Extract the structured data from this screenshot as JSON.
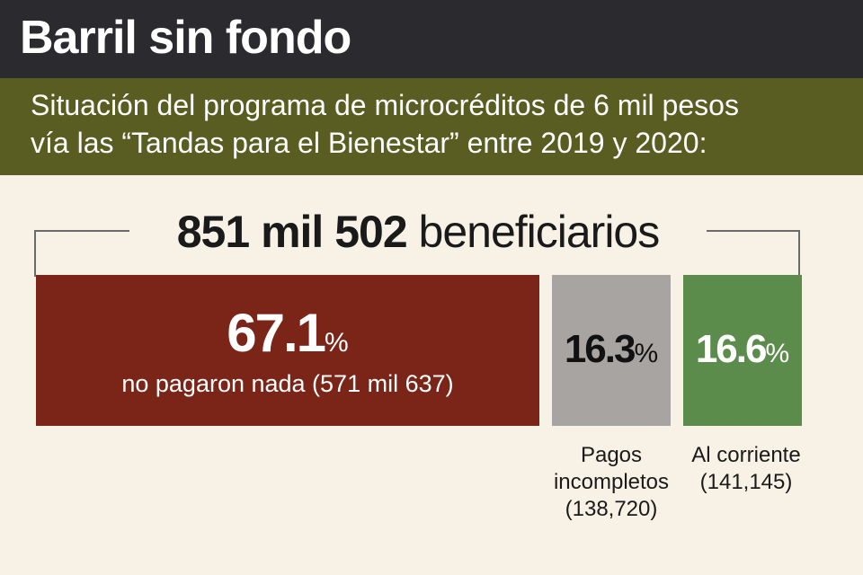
{
  "header": {
    "title": "Barril sin fondo",
    "subtitle_line1": "Situación del programa de microcréditos de 6 mil pesos",
    "subtitle_line2": "vía las “Tandas para el Bienestar” entre 2019 y 2020:"
  },
  "total": {
    "number": "851 mil 502",
    "word": "beneficiarios"
  },
  "colors": {
    "header_bg": "#2b2a2f",
    "subheader_bg": "#5a5d22",
    "background": "#f7f1e6",
    "no_pagaron": "#7b2519",
    "incompletos": "#a8a4a2",
    "al_corriente": "#5c8c4c"
  },
  "chart_data": {
    "type": "bar",
    "title": "Barril sin fondo",
    "total_label": "851 mil 502 beneficiarios",
    "segments": [
      {
        "name": "no pagaron nada",
        "percent": 67.1,
        "percent_text": "67.1",
        "count_text": "571 mil 637",
        "description": "no pagaron nada (571 mil 637)"
      },
      {
        "name": "Pagos incompletos",
        "percent": 16.3,
        "percent_text": "16.3",
        "count_text": "138,720",
        "label_line1": "Pagos",
        "label_line2": "incompletos",
        "label_line3": "(138,720)"
      },
      {
        "name": "Al corriente",
        "percent": 16.6,
        "percent_text": "16.6",
        "count_text": "141,145",
        "label_line1": "Al corriente",
        "label_line2": "(141,145)"
      }
    ],
    "percent_sign": "%"
  }
}
